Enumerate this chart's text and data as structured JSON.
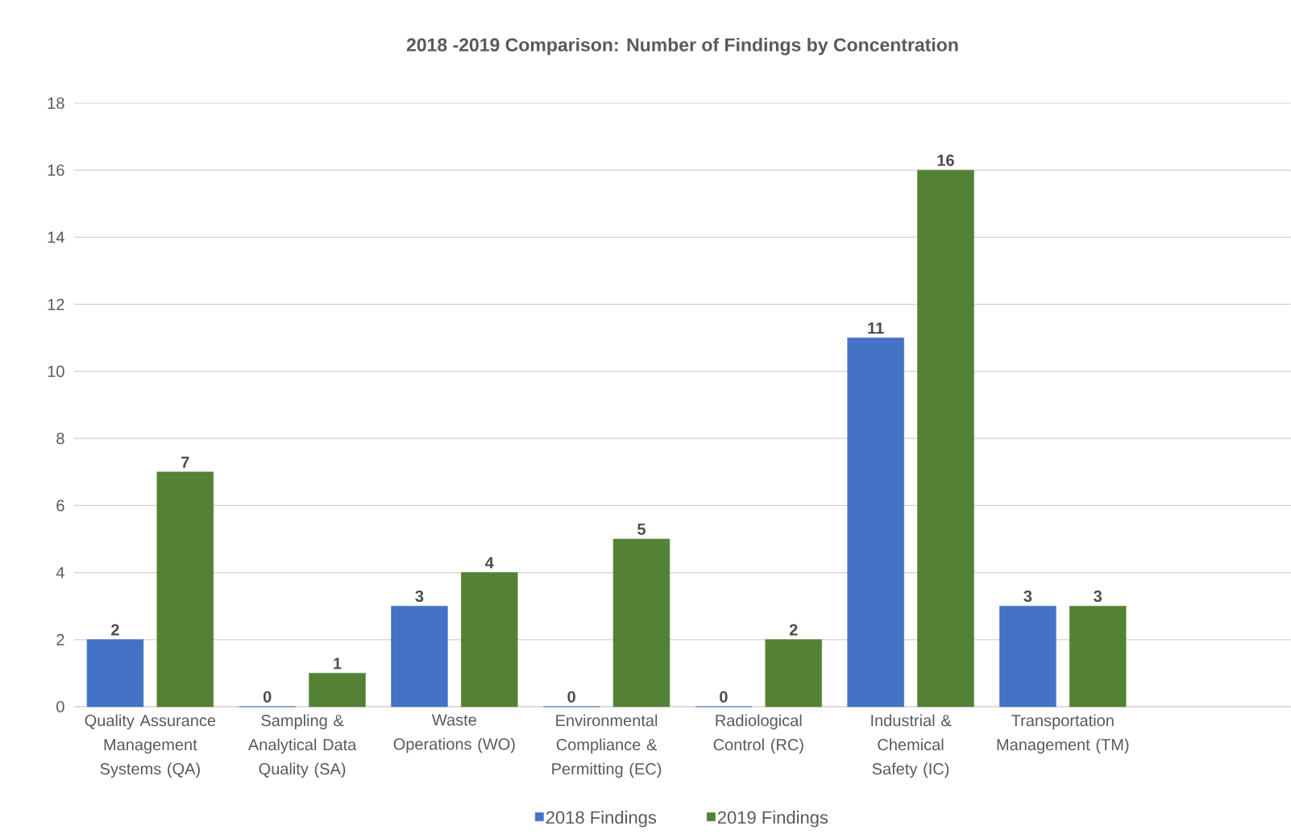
{
  "chart_data": {
    "type": "bar",
    "title": "2018 -2019 Comparison:  Number of Findings by Concentration",
    "categories": [
      "Quality Assurance Management Systems (QA)",
      "Sampling & Analytical Data Quality (SA)",
      "Waste Operations (WO)",
      "Environmental Compliance & Permitting (EC)",
      "Radiological Control (RC)",
      "Industrial & Chemical Safety (IC)",
      "Transportation Management (TM)",
      null
    ],
    "series": [
      {
        "name": "2018 Findings",
        "color": "#4472c4",
        "values": [
          2,
          0,
          3,
          0,
          0,
          11,
          3,
          null
        ]
      },
      {
        "name": "2019 Findings",
        "color": "#548235",
        "values": [
          7,
          1,
          4,
          5,
          2,
          16,
          3,
          null
        ]
      }
    ],
    "ylim": [
      0,
      18
    ],
    "yticks": [
      0,
      2,
      4,
      6,
      8,
      10,
      12,
      14,
      16,
      18
    ],
    "grid": "y",
    "legend": "bottom",
    "data_labels": true
  }
}
